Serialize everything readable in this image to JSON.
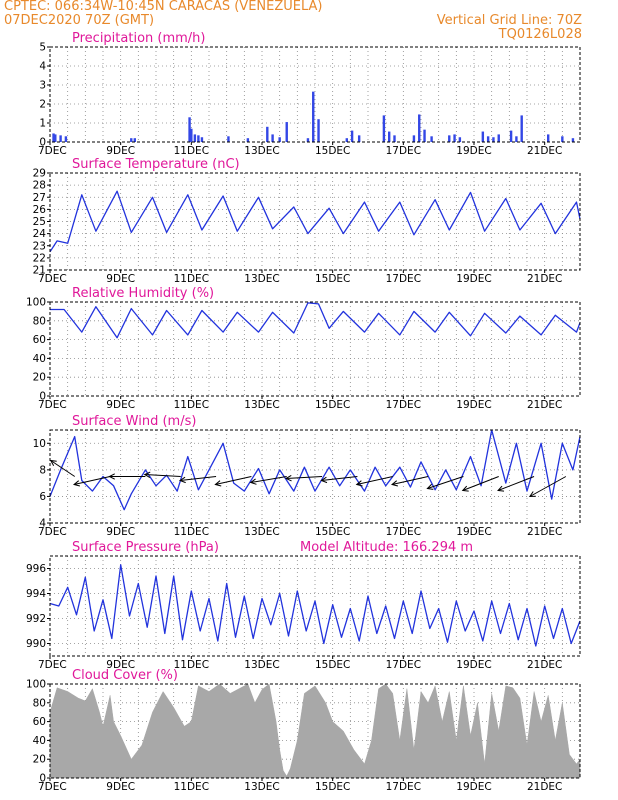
{
  "header": {
    "line1": "CPTEC:   066:34W-10:45N   CARACAS (VENEZUELA)",
    "line2": "07DEC2020 70Z (GMT)",
    "grid_note": "Vertical Grid Line: 70Z",
    "code": "TQ0126L028"
  },
  "colors": {
    "header": "#e8892b",
    "title": "#e0189a",
    "line": "#2233dd",
    "bar": "#3347e6",
    "cloud": "#a8a8a8"
  },
  "chart_data": [
    {
      "id": "precipitation",
      "type": "bar",
      "title": "Precipitation (mm/h)",
      "ylim": [
        0,
        5
      ],
      "yticks": [
        "0",
        "1",
        "2",
        "3",
        "4",
        "5"
      ],
      "xticks": [
        "7DEC",
        "9DEC",
        "11DEC",
        "13DEC",
        "15DEC",
        "17DEC",
        "19DEC",
        "21DEC"
      ],
      "xlim": [
        0,
        15
      ],
      "series": [
        {
          "x": [
            0.1,
            0.15,
            0.3,
            0.45,
            2.3,
            2.4,
            3.95,
            4.0,
            4.1,
            4.2,
            4.3,
            5.05,
            5.6,
            6.15,
            6.3,
            6.5,
            6.7,
            7.3,
            7.45,
            7.6,
            8.4,
            8.55,
            8.75,
            9.45,
            9.6,
            9.75,
            10.3,
            10.45,
            10.6,
            10.8,
            11.3,
            11.45,
            11.6,
            12.25,
            12.4,
            12.55,
            12.7,
            13.05,
            13.2,
            13.35,
            14.1,
            14.5,
            14.8
          ],
          "values": [
            0.45,
            0.4,
            0.35,
            0.3,
            0.2,
            0.2,
            1.3,
            0.7,
            0.4,
            0.35,
            0.25,
            0.3,
            0.2,
            0.8,
            0.4,
            0.25,
            1.05,
            0.2,
            2.65,
            1.2,
            0.2,
            0.6,
            0.35,
            1.4,
            0.55,
            0.35,
            0.35,
            1.45,
            0.65,
            0.3,
            0.35,
            0.4,
            0.25,
            0.55,
            0.3,
            0.25,
            0.4,
            0.6,
            0.3,
            1.4,
            0.4,
            0.3,
            0.2
          ]
        }
      ]
    },
    {
      "id": "temperature",
      "type": "line",
      "title": "Surface Temperature (nC)",
      "ylim": [
        21,
        29
      ],
      "yticks": [
        "21",
        "22",
        "23",
        "24",
        "25",
        "26",
        "27",
        "28",
        "29"
      ],
      "xticks": [
        "7DEC",
        "9DEC",
        "11DEC",
        "13DEC",
        "15DEC",
        "17DEC",
        "19DEC",
        "21DEC"
      ],
      "xlim": [
        0,
        15
      ],
      "series": [
        {
          "x": [
            0,
            0.2,
            0.5,
            0.9,
            1.3,
            1.9,
            2.3,
            2.9,
            3.3,
            3.9,
            4.3,
            4.9,
            5.3,
            5.9,
            6.3,
            6.9,
            7.3,
            7.9,
            8.3,
            8.9,
            9.3,
            9.9,
            10.3,
            10.9,
            11.3,
            11.9,
            12.3,
            12.9,
            13.3,
            13.9,
            14.3,
            14.9,
            15.0
          ],
          "values": [
            22.5,
            23.4,
            23.2,
            27.2,
            24.2,
            27.5,
            24.1,
            27.0,
            24.1,
            27.2,
            24.3,
            27.1,
            24.2,
            27.0,
            24.4,
            26.2,
            24.0,
            26.1,
            24.0,
            26.6,
            24.2,
            26.6,
            23.9,
            26.8,
            24.3,
            27.4,
            24.2,
            26.9,
            24.3,
            26.5,
            24.0,
            26.6,
            25.2
          ]
        }
      ]
    },
    {
      "id": "humidity",
      "type": "line",
      "title": "Relative Humidity (%)",
      "ylim": [
        0,
        100
      ],
      "yticks": [
        "0",
        "20",
        "40",
        "60",
        "80",
        "100"
      ],
      "xticks": [
        "7DEC",
        "9DEC",
        "11DEC",
        "13DEC",
        "15DEC",
        "17DEC",
        "19DEC",
        "21DEC"
      ],
      "xlim": [
        0,
        15
      ],
      "series": [
        {
          "x": [
            0,
            0.4,
            0.9,
            1.3,
            1.9,
            2.3,
            2.9,
            3.3,
            3.9,
            4.3,
            4.9,
            5.3,
            5.9,
            6.3,
            6.9,
            7.3,
            7.6,
            7.9,
            8.3,
            8.9,
            9.3,
            9.9,
            10.3,
            10.9,
            11.3,
            11.9,
            12.3,
            12.9,
            13.3,
            13.9,
            14.3,
            14.9,
            15.0
          ],
          "values": [
            92,
            92,
            68,
            95,
            62,
            93,
            65,
            91,
            65,
            91,
            68,
            89,
            68,
            89,
            67,
            99,
            98,
            72,
            90,
            68,
            88,
            65,
            90,
            68,
            89,
            64,
            88,
            67,
            85,
            65,
            86,
            68,
            78
          ]
        }
      ]
    },
    {
      "id": "wind",
      "type": "line",
      "title": "Surface Wind (m/s)",
      "ylim": [
        4,
        11
      ],
      "yticks": [
        "4",
        "6",
        "8",
        "10"
      ],
      "xticks": [
        "7DEC",
        "9DEC",
        "11DEC",
        "13DEC",
        "15DEC",
        "17DEC",
        "19DEC",
        "21DEC"
      ],
      "xlim": [
        0,
        15
      ],
      "series": [
        {
          "x": [
            0,
            0.3,
            0.7,
            0.9,
            1.2,
            1.5,
            1.8,
            2.1,
            2.3,
            2.7,
            3.0,
            3.3,
            3.6,
            3.9,
            4.2,
            4.5,
            4.9,
            5.2,
            5.5,
            5.9,
            6.2,
            6.5,
            6.9,
            7.2,
            7.5,
            7.9,
            8.2,
            8.5,
            8.9,
            9.2,
            9.5,
            9.9,
            10.2,
            10.5,
            10.9,
            11.2,
            11.5,
            11.9,
            12.2,
            12.5,
            12.9,
            13.2,
            13.5,
            13.9,
            14.2,
            14.5,
            14.8,
            15.0
          ],
          "values": [
            6.0,
            8.0,
            10.5,
            7.2,
            6.4,
            7.5,
            6.8,
            5.0,
            6.2,
            8.0,
            6.8,
            7.6,
            6.4,
            9.0,
            6.5,
            8.0,
            10.0,
            7.0,
            6.4,
            8.1,
            6.2,
            8.0,
            6.4,
            8.2,
            6.4,
            8.2,
            6.8,
            8.0,
            6.4,
            8.2,
            6.8,
            8.2,
            6.7,
            8.6,
            6.5,
            8.0,
            6.5,
            9.0,
            6.8,
            11.0,
            7.0,
            10.0,
            6.4,
            10.0,
            5.8,
            10.0,
            8.0,
            10.5
          ]
        }
      ],
      "vectors": {
        "x": [
          0.7,
          1.7,
          2.7,
          3.7,
          4.7,
          5.7,
          6.7,
          7.7,
          8.7,
          9.7,
          10.7,
          11.7,
          12.7,
          13.7,
          14.6
        ],
        "u": [
          -0.6,
          -0.9,
          -0.9,
          -0.9,
          -0.9,
          -0.9,
          -0.9,
          -0.9,
          -0.9,
          -0.9,
          -0.9,
          -0.9,
          -0.9,
          -0.9,
          -0.9
        ],
        "v": [
          0.4,
          -0.2,
          0.0,
          0.05,
          -0.1,
          -0.2,
          -0.15,
          -0.05,
          -0.1,
          -0.2,
          -0.2,
          -0.3,
          -0.35,
          -0.35,
          -0.5
        ]
      }
    },
    {
      "id": "pressure",
      "type": "line",
      "title": "Surface Pressure (hPa)",
      "subtitle": "Model Altitude: 166.294 m",
      "ylim": [
        989,
        997
      ],
      "yticks": [
        "990",
        "992",
        "994",
        "996"
      ],
      "xticks": [
        "7DEC",
        "9DEC",
        "11DEC",
        "13DEC",
        "15DEC",
        "17DEC",
        "19DEC",
        "21DEC"
      ],
      "xlim": [
        0,
        15
      ],
      "series": [
        {
          "x": [
            0,
            0.25,
            0.5,
            0.75,
            1.0,
            1.25,
            1.5,
            1.75,
            2.0,
            2.25,
            2.5,
            2.75,
            3.0,
            3.25,
            3.5,
            3.75,
            4.0,
            4.25,
            4.5,
            4.75,
            5.0,
            5.25,
            5.5,
            5.75,
            6.0,
            6.25,
            6.5,
            6.75,
            7.0,
            7.25,
            7.5,
            7.75,
            8.0,
            8.25,
            8.5,
            8.75,
            9.0,
            9.25,
            9.5,
            9.75,
            10.0,
            10.25,
            10.5,
            10.75,
            11.0,
            11.25,
            11.5,
            11.75,
            12.0,
            12.25,
            12.5,
            12.75,
            13.0,
            13.25,
            13.5,
            13.75,
            14.0,
            14.25,
            14.5,
            14.75,
            15.0
          ],
          "values": [
            993.2,
            993.0,
            994.5,
            992.3,
            995.3,
            991.0,
            993.5,
            990.4,
            996.3,
            992.2,
            994.8,
            991.3,
            995.4,
            990.8,
            995.4,
            990.3,
            994.2,
            991.0,
            993.6,
            990.2,
            994.8,
            990.5,
            993.8,
            990.4,
            993.6,
            991.5,
            994.0,
            990.6,
            994.2,
            991.0,
            993.4,
            990.0,
            993.1,
            990.5,
            992.8,
            990.2,
            993.8,
            990.8,
            993.0,
            990.4,
            993.4,
            990.8,
            994.2,
            991.2,
            992.8,
            990.1,
            993.4,
            991.0,
            992.6,
            990.2,
            993.4,
            990.8,
            993.2,
            990.3,
            992.8,
            989.8,
            993.0,
            990.4,
            992.8,
            990.0,
            991.8
          ]
        }
      ]
    },
    {
      "id": "cloud",
      "type": "area",
      "title": "Cloud Cover (%)",
      "ylim": [
        0,
        100
      ],
      "yticks": [
        "0",
        "20",
        "40",
        "60",
        "80",
        "100"
      ],
      "xticks": [
        "7DEC",
        "9DEC",
        "11DEC",
        "13DEC",
        "15DEC",
        "17DEC",
        "19DEC",
        "21DEC"
      ],
      "xlim": [
        0,
        15
      ],
      "series": [
        {
          "x": [
            0,
            0.2,
            0.5,
            0.8,
            1.0,
            1.2,
            1.4,
            1.5,
            1.7,
            1.8,
            2.0,
            2.3,
            2.6,
            2.9,
            3.2,
            3.5,
            3.8,
            4.0,
            4.2,
            4.5,
            4.8,
            5.1,
            5.4,
            5.6,
            5.8,
            6.0,
            6.2,
            6.4,
            6.5,
            6.6,
            6.7,
            6.8,
            7.0,
            7.2,
            7.5,
            7.8,
            8.0,
            8.3,
            8.6,
            8.9,
            9.1,
            9.3,
            9.5,
            9.7,
            9.9,
            10.1,
            10.3,
            10.5,
            10.7,
            10.9,
            11.1,
            11.3,
            11.5,
            11.7,
            11.9,
            12.1,
            12.3,
            12.5,
            12.7,
            12.9,
            13.1,
            13.3,
            13.5,
            13.7,
            13.9,
            14.1,
            14.3,
            14.5,
            14.7,
            14.9,
            15.0
          ],
          "values": [
            70,
            96,
            92,
            85,
            82,
            95,
            70,
            55,
            88,
            60,
            45,
            20,
            35,
            70,
            92,
            75,
            55,
            60,
            98,
            92,
            100,
            90,
            96,
            100,
            80,
            94,
            100,
            60,
            30,
            8,
            2,
            10,
            40,
            90,
            98,
            80,
            60,
            50,
            30,
            15,
            40,
            95,
            100,
            90,
            40,
            95,
            30,
            92,
            80,
            98,
            60,
            92,
            40,
            98,
            45,
            80,
            15,
            90,
            50,
            98,
            96,
            85,
            35,
            92,
            60,
            88,
            40,
            80,
            25,
            15,
            20
          ]
        }
      ]
    }
  ]
}
